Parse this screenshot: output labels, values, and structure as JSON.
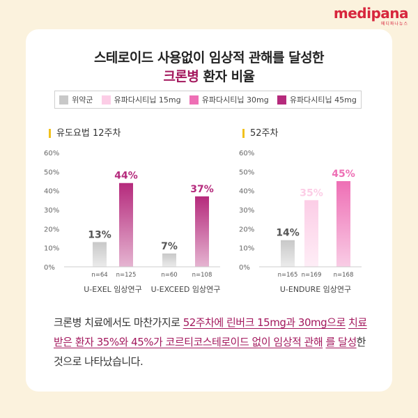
{
  "brand": {
    "logo": "medipana",
    "logo_sub": "메디파나뉴스",
    "color": "#d7263d"
  },
  "title": {
    "line1": "스테로이드 사용없이 임상적 관해를 달성한",
    "line2_highlight": "크론병",
    "line2_rest": " 환자 비율"
  },
  "legend": [
    {
      "label": "위약군",
      "color": "#c8c8c8"
    },
    {
      "label": "유파다시티닙 15mg",
      "color": "#fccde6"
    },
    {
      "label": "유파다시티닙 30mg",
      "color": "#ee6fb5"
    },
    {
      "label": "유파다시티닙 45mg",
      "color": "#b52a7c"
    }
  ],
  "chart_data": [
    {
      "type": "bar",
      "title": "유도요법 12주차",
      "ylim": [
        0,
        60
      ],
      "yticks": [
        "0%",
        "10%",
        "20%",
        "30%",
        "40%",
        "50%",
        "60%"
      ],
      "groups": [
        {
          "name": "U-EXEL 임상연구",
          "bars": [
            {
              "series": "위약군",
              "value": 13,
              "label": "13%",
              "n": "n=64"
            },
            {
              "series": "유파다시티닙 45mg",
              "value": 44,
              "label": "44%",
              "n": "n=125"
            }
          ]
        },
        {
          "name": "U-EXCEED 임상연구",
          "bars": [
            {
              "series": "위약군",
              "value": 7,
              "label": "7%",
              "n": "n=60"
            },
            {
              "series": "유파다시티닙 45mg",
              "value": 37,
              "label": "37%",
              "n": "n=108"
            }
          ]
        }
      ]
    },
    {
      "type": "bar",
      "title": "52주차",
      "ylim": [
        0,
        60
      ],
      "yticks": [
        "0%",
        "10%",
        "20%",
        "30%",
        "40%",
        "50%",
        "60%"
      ],
      "groups": [
        {
          "name": "U-ENDURE 임상연구",
          "bars": [
            {
              "series": "위약군",
              "value": 14,
              "label": "14%",
              "n": "n=165"
            },
            {
              "series": "유파다시티닙 15mg",
              "value": 35,
              "label": "35%",
              "n": "n=169"
            },
            {
              "series": "유파다시티닙 30mg",
              "value": 45,
              "label": "45%",
              "n": "n=168"
            }
          ]
        }
      ]
    }
  ],
  "description": {
    "p1": "크론병 치료에서도 마찬가지로 ",
    "u1": "52주차에 린버크 15mg과 30mg으로",
    "u2": "치료받은 환자 35%와 45%가 코르티코스테로이드 없이 임상적 관해",
    "u3": "를 달성",
    "p2": "한 것으로 나타났습니다."
  }
}
